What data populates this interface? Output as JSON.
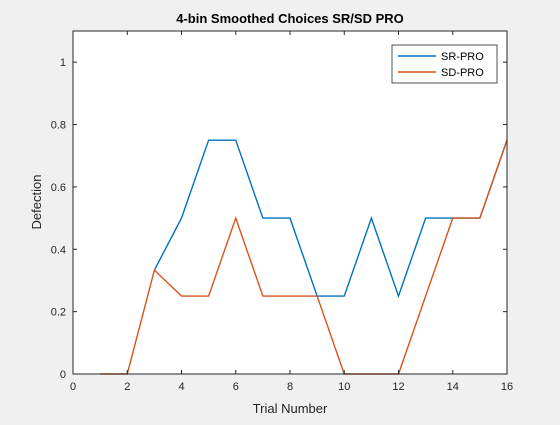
{
  "chart_data": {
    "type": "line",
    "title": "4-bin Smoothed Choices SR/SD PRO",
    "xlabel": "Trial Number",
    "ylabel": "Defection",
    "xlim": [
      0,
      16
    ],
    "ylim": [
      0,
      1.1
    ],
    "xticks": [
      0,
      2,
      4,
      6,
      8,
      10,
      12,
      14,
      16
    ],
    "yticks": [
      0,
      0.2,
      0.4,
      0.6,
      0.8,
      1
    ],
    "xtick_labels": [
      "0",
      "2",
      "4",
      "6",
      "8",
      "10",
      "12",
      "14",
      "16"
    ],
    "ytick_labels": [
      "0",
      "0.2",
      "0.4",
      "0.6",
      "0.8",
      "1"
    ],
    "grid": false,
    "legend_position": "top-right",
    "x": [
      1,
      2,
      3,
      4,
      5,
      6,
      7,
      8,
      9,
      10,
      11,
      12,
      13,
      14,
      15,
      16
    ],
    "series": [
      {
        "name": "SR-PRO",
        "color": "#0072bd",
        "values": [
          null,
          null,
          0.333,
          0.5,
          0.75,
          0.75,
          0.5,
          0.5,
          0.25,
          0.25,
          0.5,
          0.25,
          0.5,
          0.5,
          0.5,
          0.75
        ]
      },
      {
        "name": "SD-PRO",
        "color": "#d95319",
        "values": [
          0,
          0,
          0.333,
          0.25,
          0.25,
          0.5,
          0.25,
          0.25,
          0.25,
          0,
          0,
          0,
          0.25,
          0.5,
          0.5,
          0.75
        ]
      }
    ]
  }
}
